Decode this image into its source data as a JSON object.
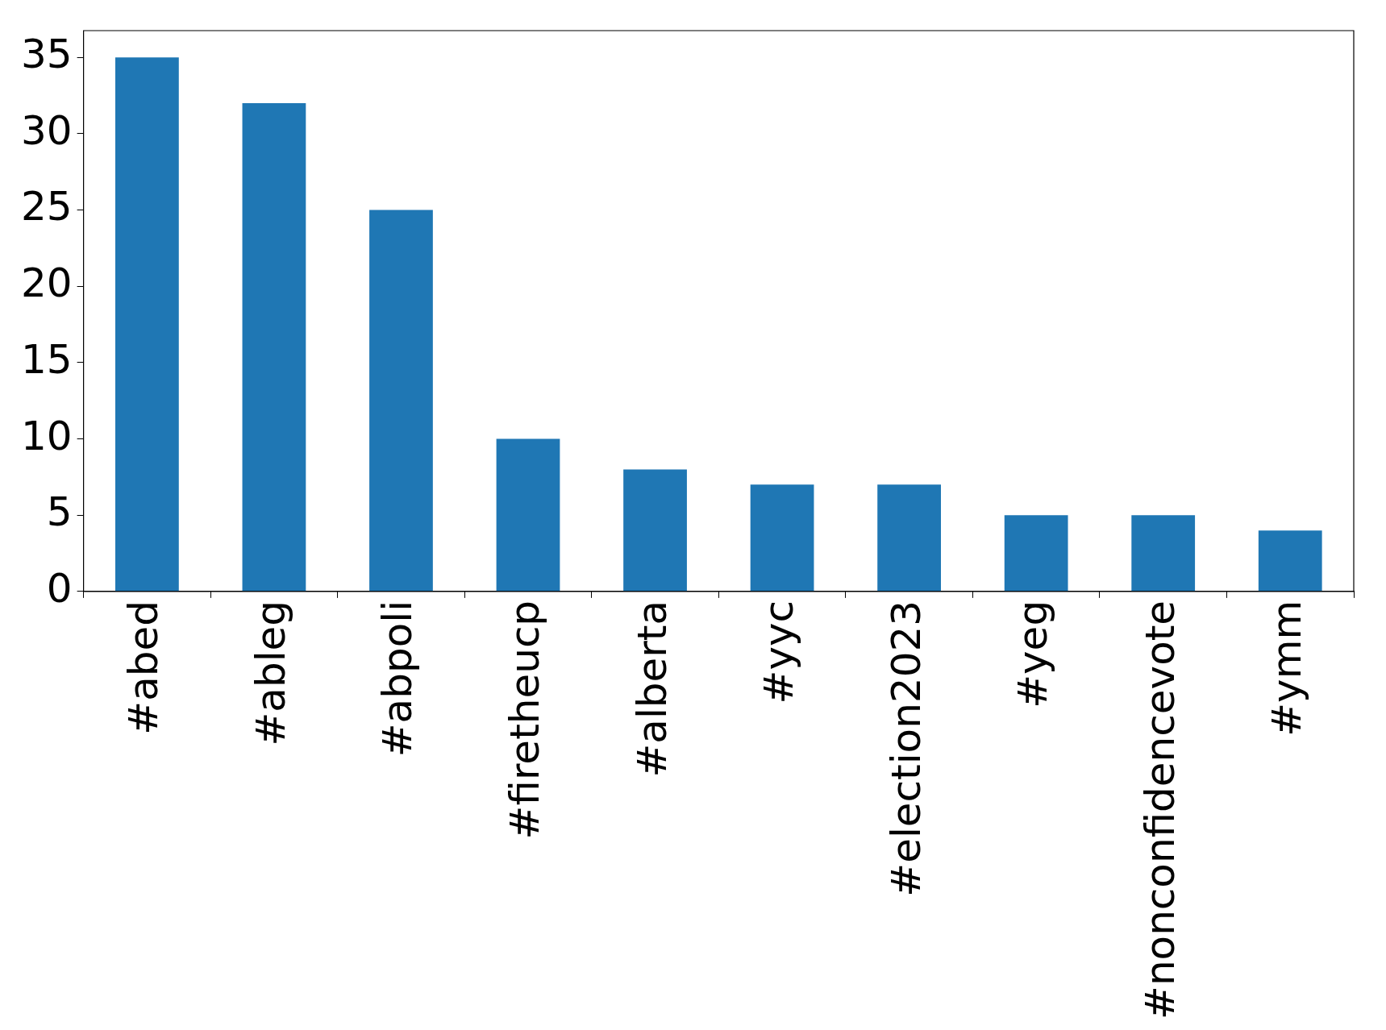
{
  "chart_data": {
    "type": "bar",
    "categories": [
      "#abed",
      "#ableg",
      "#abpoli",
      "#firetheucp",
      "#alberta",
      "#yyc",
      "#election2023",
      "#yeg",
      "#nonconfidencevote",
      "#ymm"
    ],
    "values": [
      35,
      32,
      25,
      10,
      8,
      7,
      7,
      5,
      5,
      4
    ],
    "color": "#1f77b4",
    "ylim": [
      0,
      36.75
    ],
    "yticks": [
      0,
      5,
      10,
      15,
      20,
      25,
      30,
      35
    ],
    "grid": false,
    "legend": false
  }
}
